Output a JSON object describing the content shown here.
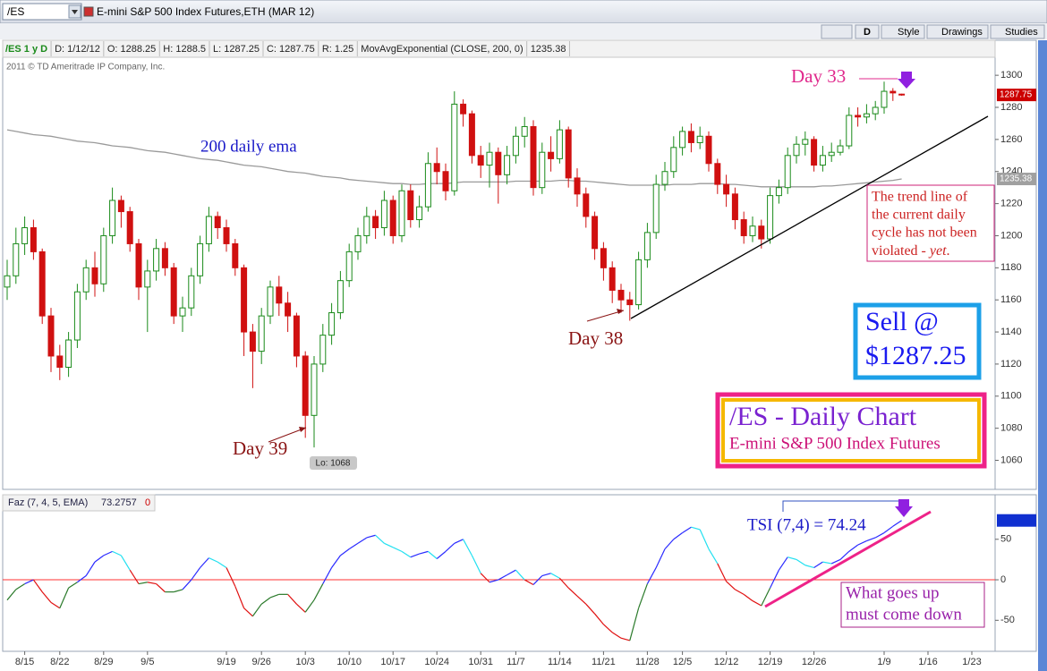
{
  "toolbar": {
    "symbol": "/ES",
    "description": "E-mini S&P 500 Index Futures,ETH (MAR 12)",
    "period_button": "D",
    "buttons": [
      "Style",
      "Drawings",
      "Studies"
    ]
  },
  "header": [
    "/ES 1 y D",
    "D: 1/12/12",
    "O: 1288.25",
    "H: 1288.5",
    "L: 1287.25",
    "C: 1287.75",
    "R: 1.25",
    "MovAvgExponential (CLOSE, 200, 0)",
    "1235.38"
  ],
  "copyright": "2011 © TD Ameritrade IP Company, Inc.",
  "chart_data": [
    {
      "type": "candlestick",
      "up_color": "#1a8a1a",
      "down_color": "#d01010",
      "open": [
        1168,
        1175,
        1195,
        1205,
        1190,
        1150,
        1125,
        1118,
        1135,
        1165,
        1180,
        1170,
        1200,
        1222,
        1215,
        1195,
        1168,
        1178,
        1192,
        1180,
        1150,
        1155,
        1175,
        1195,
        1212,
        1205,
        1195,
        1180,
        1140,
        1128,
        1150,
        1168,
        1158,
        1150,
        1125,
        1088,
        1120,
        1138,
        1152,
        1172,
        1190,
        1200,
        1212,
        1205,
        1222,
        1200,
        1228,
        1210,
        1218,
        1245,
        1240,
        1228,
        1282,
        1276,
        1250,
        1244,
        1252,
        1238,
        1250,
        1262,
        1268,
        1230,
        1252,
        1248,
        1266,
        1236,
        1226,
        1212,
        1192,
        1180,
        1166,
        1160,
        1157,
        1185,
        1202,
        1232,
        1240,
        1255,
        1265,
        1258,
        1262,
        1245,
        1232,
        1226,
        1210,
        1200,
        1206,
        1198,
        1225,
        1230,
        1250,
        1257,
        1260,
        1244,
        1250,
        1252,
        1256,
        1275,
        1274,
        1276,
        1280,
        1290,
        1288.25,
        null,
        null,
        null,
        null,
        null,
        null,
        null,
        null
      ],
      "high": [
        1185,
        1205,
        1212,
        1210,
        1192,
        1155,
        1132,
        1140,
        1170,
        1185,
        1190,
        1205,
        1230,
        1225,
        1218,
        1198,
        1185,
        1198,
        1196,
        1183,
        1162,
        1180,
        1200,
        1218,
        1215,
        1210,
        1198,
        1182,
        1145,
        1155,
        1172,
        1175,
        1165,
        1152,
        1128,
        1125,
        1145,
        1158,
        1178,
        1195,
        1205,
        1218,
        1216,
        1228,
        1225,
        1232,
        1232,
        1225,
        1252,
        1255,
        1245,
        1290,
        1285,
        1278,
        1256,
        1258,
        1255,
        1256,
        1268,
        1274,
        1272,
        1258,
        1262,
        1272,
        1268,
        1242,
        1230,
        1215,
        1196,
        1184,
        1170,
        1165,
        1190,
        1208,
        1238,
        1246,
        1262,
        1268,
        1270,
        1268,
        1265,
        1248,
        1238,
        1230,
        1215,
        1212,
        1210,
        1230,
        1235,
        1255,
        1262,
        1265,
        1262,
        1256,
        1258,
        1260,
        1280,
        1280,
        1282,
        1284,
        1296,
        1292,
        1288.5,
        null,
        null,
        null,
        null,
        null,
        null,
        null,
        null
      ],
      "low": [
        1160,
        1170,
        1188,
        1185,
        1145,
        1115,
        1110,
        1112,
        1130,
        1160,
        1162,
        1165,
        1195,
        1205,
        1190,
        1160,
        1140,
        1172,
        1175,
        1145,
        1140,
        1150,
        1170,
        1190,
        1198,
        1190,
        1175,
        1125,
        1105,
        1120,
        1145,
        1150,
        1140,
        1118,
        1074,
        1068,
        1115,
        1132,
        1148,
        1168,
        1185,
        1195,
        1198,
        1200,
        1195,
        1196,
        1205,
        1205,
        1215,
        1232,
        1222,
        1225,
        1268,
        1245,
        1236,
        1230,
        1220,
        1232,
        1245,
        1255,
        1225,
        1226,
        1240,
        1245,
        1230,
        1218,
        1205,
        1185,
        1172,
        1158,
        1152,
        1147,
        1154,
        1180,
        1198,
        1228,
        1236,
        1250,
        1252,
        1254,
        1240,
        1226,
        1218,
        1204,
        1195,
        1196,
        1192,
        1195,
        1220,
        1226,
        1245,
        1250,
        1240,
        1240,
        1246,
        1250,
        1254,
        1268,
        1270,
        1272,
        1276,
        1284,
        1287.25,
        null,
        null,
        null,
        null,
        null,
        null,
        null,
        null
      ],
      "close": [
        1175,
        1195,
        1205,
        1190,
        1150,
        1125,
        1118,
        1135,
        1165,
        1180,
        1170,
        1200,
        1222,
        1215,
        1195,
        1168,
        1178,
        1192,
        1180,
        1150,
        1155,
        1175,
        1195,
        1212,
        1205,
        1195,
        1180,
        1140,
        1128,
        1150,
        1168,
        1158,
        1150,
        1125,
        1088,
        1120,
        1138,
        1152,
        1172,
        1190,
        1200,
        1212,
        1205,
        1222,
        1200,
        1228,
        1210,
        1218,
        1245,
        1240,
        1228,
        1282,
        1276,
        1250,
        1244,
        1252,
        1238,
        1250,
        1262,
        1268,
        1230,
        1252,
        1248,
        1266,
        1236,
        1226,
        1212,
        1192,
        1180,
        1166,
        1160,
        1157,
        1185,
        1202,
        1232,
        1240,
        1255,
        1265,
        1258,
        1262,
        1245,
        1232,
        1226,
        1210,
        1200,
        1206,
        1198,
        1225,
        1230,
        1250,
        1257,
        1260,
        1244,
        1250,
        1252,
        1256,
        1275,
        1274,
        1276,
        1280,
        1290,
        1289,
        1287.75,
        null,
        null,
        null,
        null,
        null,
        null,
        null,
        null
      ],
      "ema": {
        "color": "#9a9a9a",
        "values": [
          1266,
          1265,
          1264,
          1263,
          1262.5,
          1262,
          1261,
          1260,
          1259,
          1258.5,
          1258,
          1257,
          1256,
          1255.5,
          1255,
          1254,
          1253,
          1252.5,
          1252,
          1251,
          1250,
          1249,
          1248,
          1247.5,
          1247,
          1246,
          1245,
          1244,
          1243.5,
          1243,
          1242,
          1241,
          1240,
          1239.5,
          1239,
          1238,
          1237,
          1236.5,
          1236,
          1235,
          1234.5,
          1234,
          1233.5,
          1233,
          1232.5,
          1232.5,
          1232,
          1232,
          1232.5,
          1232.5,
          1232.5,
          1233,
          1233.5,
          1233.5,
          1233.5,
          1233.5,
          1233.5,
          1233.5,
          1234,
          1234,
          1234,
          1234,
          1234,
          1234.5,
          1234.5,
          1234,
          1234,
          1233.5,
          1233,
          1232.5,
          1232,
          1231.5,
          1231.5,
          1231.5,
          1231.5,
          1231.5,
          1232,
          1232,
          1232,
          1232.5,
          1232.5,
          1232.5,
          1232,
          1232,
          1231.5,
          1231,
          1230.5,
          1230.5,
          1230.5,
          1230.5,
          1230.5,
          1230.5,
          1230.5,
          1231,
          1231,
          1231.5,
          1232,
          1232.5,
          1233,
          1233.5,
          1234,
          1234.5,
          1235.38,
          null,
          null,
          null,
          null,
          null,
          null,
          null,
          null
        ]
      },
      "price_tags": [
        {
          "value": 1287.75,
          "color": "#cc0000"
        },
        {
          "value": 1235.38,
          "color": "#a0a0a0"
        }
      ],
      "ylim": [
        1043,
        1309
      ],
      "yticks": [
        1060,
        1080,
        1100,
        1120,
        1140,
        1160,
        1180,
        1200,
        1220,
        1240,
        1260,
        1280,
        1300
      ],
      "grid": false,
      "annotations": {
        "day33": "Day 33",
        "day38": "Day 38",
        "day39": "Day 39",
        "ema_label": "200 daily ema",
        "low_label": "Lo: 1068",
        "trend_note": [
          "The trend line of",
          "the current daily",
          "cycle has not been",
          "violated - "
        ],
        "trend_note_emphasis": "yet",
        "trend_note_end": ".",
        "sell": [
          "Sell @",
          "$1287.25"
        ],
        "box_title": "/ES - Daily Chart",
        "box_subtitle": "E-mini S&P 500 Index Futures"
      }
    },
    {
      "type": "line",
      "title": "Faz (7, 4, 5, EMA)",
      "last": "73.2757",
      "flag": "0",
      "categories": [
        null,
        null,
        "8/15",
        null,
        null,
        null,
        "8/22",
        null,
        null,
        null,
        null,
        "8/29",
        null,
        null,
        null,
        null,
        "9/5",
        null,
        null,
        null,
        null,
        null,
        null,
        null,
        null,
        "9/19",
        null,
        null,
        null,
        "9/26",
        null,
        null,
        null,
        null,
        "10/3",
        null,
        null,
        null,
        null,
        "10/10",
        null,
        null,
        null,
        null,
        "10/17",
        null,
        null,
        null,
        null,
        "10/24",
        null,
        null,
        null,
        null,
        "10/31",
        null,
        null,
        null,
        "11/7",
        null,
        null,
        null,
        null,
        "11/14",
        null,
        null,
        null,
        null,
        "11/21",
        null,
        null,
        null,
        null,
        "11/28",
        null,
        null,
        null,
        "12/5",
        null,
        null,
        null,
        null,
        "12/12",
        null,
        null,
        null,
        null,
        "12/19",
        null,
        null,
        null,
        null,
        "12/26",
        null,
        null,
        null,
        null,
        null,
        null,
        null,
        "1/9",
        null,
        null,
        null,
        null,
        "1/16",
        null,
        null,
        null,
        null,
        "1/23"
      ],
      "values": [
        -25,
        -12,
        -5,
        0,
        -15,
        -28,
        -35,
        -10,
        -3,
        5,
        22,
        30,
        35,
        30,
        12,
        -5,
        -3,
        -5,
        -15,
        -15,
        -12,
        0,
        15,
        27,
        22,
        15,
        -8,
        -35,
        -45,
        -30,
        -22,
        -18,
        -18,
        -30,
        -40,
        -25,
        -5,
        15,
        30,
        38,
        45,
        52,
        55,
        45,
        40,
        35,
        28,
        32,
        35,
        26,
        35,
        45,
        50,
        30,
        8,
        -3,
        0,
        6,
        12,
        0,
        -6,
        5,
        8,
        2,
        -10,
        -20,
        -30,
        -42,
        -55,
        -65,
        -72,
        -75,
        -35,
        -5,
        15,
        38,
        50,
        58,
        65,
        62,
        38,
        20,
        -2,
        -12,
        -18,
        -26,
        -32,
        -10,
        12,
        28,
        25,
        18,
        15,
        22,
        20,
        25,
        35,
        43,
        48,
        52,
        58,
        66,
        73.2757,
        null,
        null,
        null,
        null,
        null,
        null,
        null,
        null
      ],
      "colors": {
        "rising_positive": "#2a2aff",
        "falling_positive": "#22e0f0",
        "falling_negative": "#e01010",
        "rising_negative": "#2a7a2a"
      },
      "zero_line_color": "#ff3030",
      "tag_color": "#1030d0",
      "ylim": [
        -85,
        84
      ],
      "yticks": [
        -50,
        0,
        50
      ],
      "annotations": {
        "tsi_label": "TSI (7,4) = 74.24",
        "note": [
          "What goes up",
          "must come down"
        ]
      }
    }
  ]
}
